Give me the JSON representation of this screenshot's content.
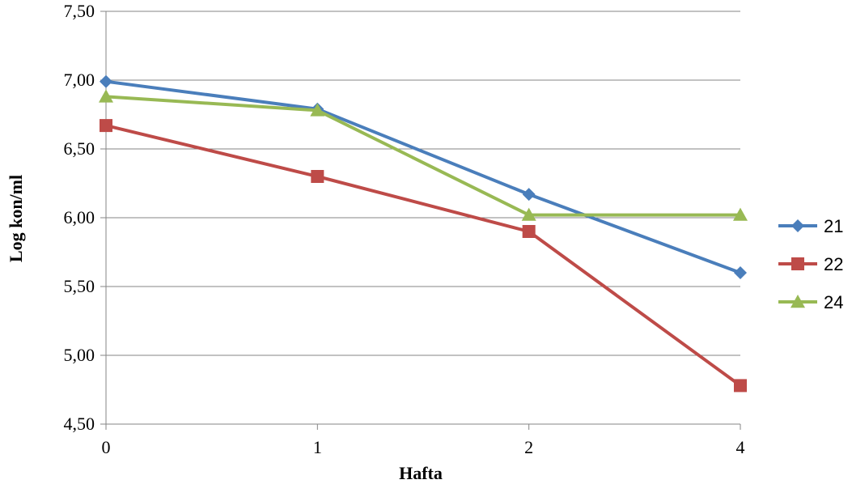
{
  "chart_data": {
    "type": "line",
    "title": "",
    "xlabel": "Hafta",
    "ylabel": "Log kon/ml",
    "categories": [
      "0",
      "1",
      "2",
      "4"
    ],
    "ylim": [
      4.5,
      7.5
    ],
    "yticks": [
      "4,50",
      "5,00",
      "5,50",
      "6,00",
      "6,50",
      "7,00",
      "7,50"
    ],
    "grid": true,
    "legend": "right",
    "series": [
      {
        "name": "21",
        "color": "#4a7ebb",
        "marker": "diamond",
        "values": [
          6.99,
          6.79,
          6.17,
          5.6
        ]
      },
      {
        "name": "22",
        "color": "#be4b48",
        "marker": "square",
        "values": [
          6.67,
          6.3,
          5.9,
          4.78
        ]
      },
      {
        "name": "24",
        "color": "#98b954",
        "marker": "triangle",
        "values": [
          6.88,
          6.78,
          6.02,
          6.02
        ]
      }
    ]
  }
}
